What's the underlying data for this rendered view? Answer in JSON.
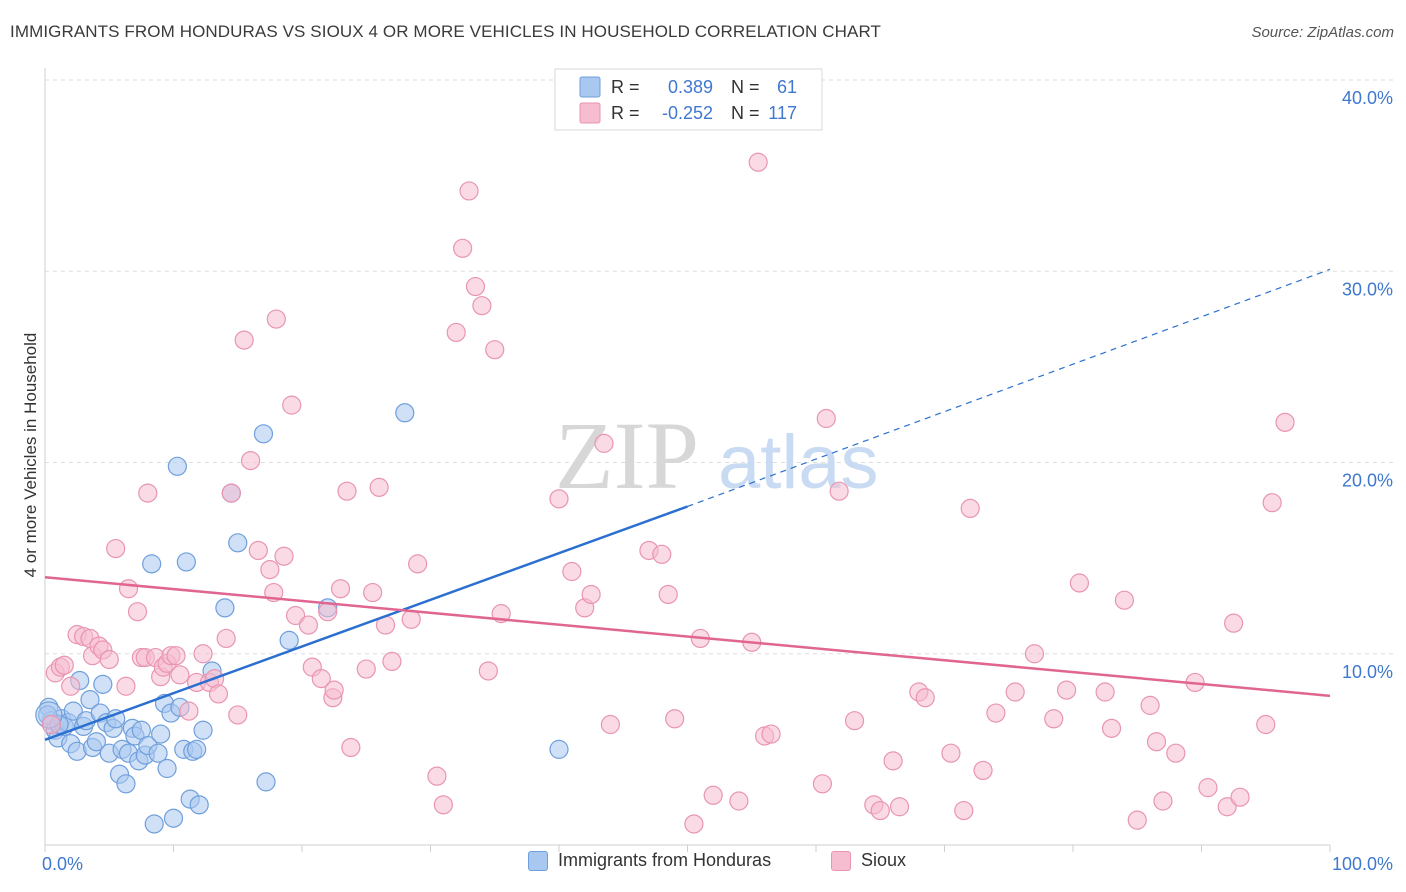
{
  "title": "IMMIGRANTS FROM HONDURAS VS SIOUX 4 OR MORE VEHICLES IN HOUSEHOLD CORRELATION CHART",
  "source": "Source: ZipAtlas.com",
  "watermark": {
    "zip": "ZIP",
    "atlas": "atlas"
  },
  "legend_top": {
    "rows": [
      {
        "r_label": "R =",
        "r_value": "0.389",
        "n_label": "N =",
        "n_value": "61"
      },
      {
        "r_label": "R =",
        "r_value": "-0.252",
        "n_label": "N =",
        "n_value": "117"
      }
    ]
  },
  "legend_bottom": {
    "items": [
      {
        "label": "Immigrants from Honduras"
      },
      {
        "label": "Sioux"
      }
    ]
  },
  "colors": {
    "blue_fill": "#a9c8f0",
    "blue_stroke": "#6f9fdc",
    "blue_line": "#2b6fd0",
    "pink_fill": "#f6bcd0",
    "pink_stroke": "#e995b1",
    "pink_line": "#e06591",
    "axis_text": "#3f78cf",
    "grid": "#dddddd"
  },
  "chart_data": {
    "type": "scatter",
    "title": "IMMIGRANTS FROM HONDURAS VS SIOUX 4 OR MORE VEHICLES IN HOUSEHOLD CORRELATION CHART",
    "xlabel": "",
    "ylabel": "4 or more Vehicles in Household",
    "xlim": [
      0,
      100
    ],
    "ylim": [
      0,
      40
    ],
    "x_tick_labels": [
      "0.0%",
      "100.0%"
    ],
    "y_tick_labels": [
      "10.0%",
      "20.0%",
      "30.0%",
      "40.0%"
    ],
    "y_ticks": [
      10,
      20,
      30,
      40
    ],
    "grid": true,
    "legend_position": "top-center",
    "series": [
      {
        "name": "Immigrants from Honduras",
        "R": 0.389,
        "N": 61,
        "trend": {
          "x0": 0,
          "y0": 5.5,
          "x1": 50,
          "y1": 17.7,
          "dashed_to_x": 100,
          "dashed_to_y": 30.1
        },
        "points": [
          [
            0.3,
            7.2
          ],
          [
            0.5,
            6.5
          ],
          [
            0.8,
            6.0
          ],
          [
            1.0,
            5.6
          ],
          [
            1.3,
            6.6
          ],
          [
            1.5,
            6.2
          ],
          [
            1.8,
            6.4
          ],
          [
            2.0,
            5.3
          ],
          [
            2.2,
            7.0
          ],
          [
            2.5,
            4.9
          ],
          [
            2.7,
            8.6
          ],
          [
            3.0,
            6.2
          ],
          [
            3.2,
            6.5
          ],
          [
            3.5,
            7.6
          ],
          [
            3.7,
            5.1
          ],
          [
            4.0,
            5.4
          ],
          [
            4.3,
            6.9
          ],
          [
            4.5,
            8.4
          ],
          [
            4.8,
            6.4
          ],
          [
            5.0,
            4.8
          ],
          [
            5.3,
            6.1
          ],
          [
            5.5,
            6.6
          ],
          [
            5.8,
            3.7
          ],
          [
            6.0,
            5.0
          ],
          [
            6.3,
            3.2
          ],
          [
            6.5,
            4.8
          ],
          [
            6.8,
            6.1
          ],
          [
            7.0,
            5.7
          ],
          [
            7.3,
            4.4
          ],
          [
            7.5,
            6.0
          ],
          [
            7.8,
            4.7
          ],
          [
            8.0,
            5.2
          ],
          [
            8.3,
            14.7
          ],
          [
            8.5,
            1.1
          ],
          [
            8.8,
            4.8
          ],
          [
            9.0,
            5.8
          ],
          [
            9.3,
            7.4
          ],
          [
            9.5,
            4.0
          ],
          [
            9.8,
            6.9
          ],
          [
            10.0,
            1.4
          ],
          [
            10.3,
            19.8
          ],
          [
            10.5,
            7.2
          ],
          [
            10.8,
            5.0
          ],
          [
            11.0,
            14.8
          ],
          [
            11.3,
            2.4
          ],
          [
            11.5,
            4.9
          ],
          [
            11.8,
            5.0
          ],
          [
            12.0,
            2.1
          ],
          [
            12.3,
            6.0
          ],
          [
            13.0,
            9.1
          ],
          [
            14.0,
            12.4
          ],
          [
            14.5,
            18.4
          ],
          [
            15.0,
            15.8
          ],
          [
            17.0,
            21.5
          ],
          [
            17.2,
            3.3
          ],
          [
            19.0,
            10.7
          ],
          [
            22.0,
            12.4
          ],
          [
            28.0,
            22.6
          ],
          [
            40.0,
            5.0
          ],
          [
            0.2,
            6.8
          ],
          [
            1.1,
            6.3
          ]
        ]
      },
      {
        "name": "Sioux",
        "R": -0.252,
        "N": 117,
        "trend": {
          "x0": 0,
          "y0": 14.0,
          "x1": 100,
          "y1": 7.8
        },
        "points": [
          [
            0.5,
            6.3
          ],
          [
            0.8,
            9.0
          ],
          [
            1.2,
            9.3
          ],
          [
            1.5,
            9.4
          ],
          [
            2.0,
            8.3
          ],
          [
            2.5,
            11.0
          ],
          [
            3.0,
            10.9
          ],
          [
            3.5,
            10.8
          ],
          [
            3.7,
            9.9
          ],
          [
            4.2,
            10.4
          ],
          [
            4.5,
            10.2
          ],
          [
            5.0,
            9.7
          ],
          [
            5.5,
            15.5
          ],
          [
            6.3,
            8.3
          ],
          [
            6.5,
            13.4
          ],
          [
            7.2,
            12.2
          ],
          [
            7.5,
            9.8
          ],
          [
            7.8,
            9.8
          ],
          [
            8.0,
            18.4
          ],
          [
            8.6,
            9.8
          ],
          [
            9.0,
            8.8
          ],
          [
            9.2,
            9.3
          ],
          [
            9.5,
            9.5
          ],
          [
            9.8,
            9.9
          ],
          [
            10.2,
            9.9
          ],
          [
            10.5,
            8.9
          ],
          [
            11.2,
            7.0
          ],
          [
            11.8,
            8.5
          ],
          [
            12.3,
            10.0
          ],
          [
            12.8,
            8.5
          ],
          [
            13.2,
            8.7
          ],
          [
            13.5,
            7.9
          ],
          [
            14.1,
            10.8
          ],
          [
            14.5,
            18.4
          ],
          [
            15.0,
            6.8
          ],
          [
            15.5,
            26.4
          ],
          [
            16.0,
            20.1
          ],
          [
            16.6,
            15.4
          ],
          [
            17.5,
            14.4
          ],
          [
            17.8,
            13.2
          ],
          [
            18.0,
            27.5
          ],
          [
            18.6,
            15.1
          ],
          [
            19.2,
            23.0
          ],
          [
            19.5,
            12.0
          ],
          [
            20.5,
            11.5
          ],
          [
            20.8,
            9.3
          ],
          [
            21.5,
            8.7
          ],
          [
            22.0,
            12.2
          ],
          [
            22.4,
            7.7
          ],
          [
            22.5,
            8.1
          ],
          [
            23.0,
            13.4
          ],
          [
            23.5,
            18.5
          ],
          [
            23.8,
            5.1
          ],
          [
            25.0,
            9.2
          ],
          [
            25.5,
            13.2
          ],
          [
            26.0,
            18.7
          ],
          [
            26.5,
            11.5
          ],
          [
            27.0,
            9.6
          ],
          [
            28.5,
            11.8
          ],
          [
            29.0,
            14.7
          ],
          [
            30.5,
            3.6
          ],
          [
            31.0,
            2.1
          ],
          [
            32.0,
            26.8
          ],
          [
            32.5,
            31.2
          ],
          [
            33.0,
            34.2
          ],
          [
            33.5,
            29.2
          ],
          [
            34.0,
            28.2
          ],
          [
            34.5,
            9.1
          ],
          [
            35.0,
            25.9
          ],
          [
            35.5,
            12.1
          ],
          [
            40.0,
            18.1
          ],
          [
            41.0,
            14.3
          ],
          [
            42.0,
            12.4
          ],
          [
            42.5,
            13.1
          ],
          [
            43.5,
            21.0
          ],
          [
            44.0,
            6.3
          ],
          [
            47.0,
            15.4
          ],
          [
            48.0,
            15.2
          ],
          [
            48.5,
            13.1
          ],
          [
            49.0,
            6.6
          ],
          [
            50.5,
            1.1
          ],
          [
            51.0,
            10.8
          ],
          [
            52.0,
            2.6
          ],
          [
            54.0,
            2.3
          ],
          [
            55.0,
            10.6
          ],
          [
            55.5,
            35.7
          ],
          [
            56.0,
            5.7
          ],
          [
            56.5,
            5.8
          ],
          [
            60.5,
            3.2
          ],
          [
            60.8,
            22.3
          ],
          [
            61.8,
            18.5
          ],
          [
            63.0,
            6.5
          ],
          [
            64.5,
            2.1
          ],
          [
            65.0,
            1.8
          ],
          [
            66.0,
            4.4
          ],
          [
            66.5,
            2.0
          ],
          [
            68.0,
            8.0
          ],
          [
            68.5,
            7.7
          ],
          [
            70.5,
            4.8
          ],
          [
            71.5,
            1.8
          ],
          [
            72.0,
            17.6
          ],
          [
            73.0,
            3.9
          ],
          [
            74.0,
            6.9
          ],
          [
            75.5,
            8.0
          ],
          [
            77.0,
            10.0
          ],
          [
            78.5,
            6.6
          ],
          [
            79.5,
            8.1
          ],
          [
            80.5,
            13.7
          ],
          [
            82.5,
            8.0
          ],
          [
            83.0,
            6.1
          ],
          [
            84.0,
            12.8
          ],
          [
            85.0,
            1.3
          ],
          [
            86.0,
            7.3
          ],
          [
            86.5,
            5.4
          ],
          [
            87.0,
            2.3
          ],
          [
            88.0,
            4.8
          ],
          [
            89.5,
            8.5
          ],
          [
            90.5,
            3.0
          ],
          [
            92.0,
            2.0
          ],
          [
            92.5,
            11.6
          ],
          [
            93.0,
            2.5
          ],
          [
            95.0,
            6.3
          ],
          [
            95.5,
            17.9
          ],
          [
            96.5,
            22.1
          ]
        ]
      }
    ]
  }
}
